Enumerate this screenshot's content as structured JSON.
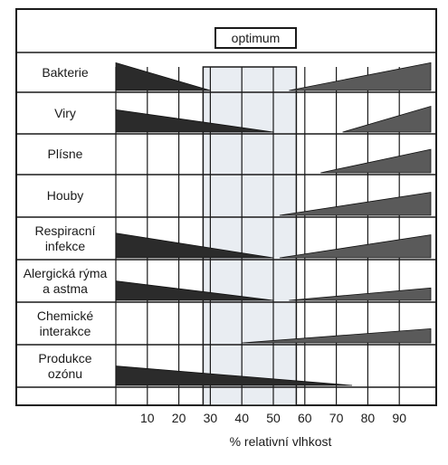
{
  "optimum_label": "optimum",
  "x_axis": {
    "label": "% relativní vlhkost",
    "ticks": [
      10,
      20,
      30,
      40,
      50,
      60,
      70,
      80,
      90
    ],
    "range": [
      0,
      100
    ]
  },
  "optimum_zone": [
    30,
    55
  ],
  "rows": [
    {
      "label_lines": [
        "Bakterie"
      ],
      "left_wedge": {
        "from": 0,
        "to": 30,
        "peak": 0.85,
        "color": "#2b2b2b"
      },
      "right_wedge": {
        "from": 55,
        "to": 100,
        "peak": 0.85,
        "color": "#5a5a5a"
      }
    },
    {
      "label_lines": [
        "Viry"
      ],
      "left_wedge": {
        "from": 0,
        "to": 50,
        "peak": 0.65,
        "color": "#2b2b2b"
      },
      "right_wedge": {
        "from": 72,
        "to": 100,
        "peak": 0.75,
        "color": "#5a5a5a"
      }
    },
    {
      "label_lines": [
        "Plísne"
      ],
      "left_wedge": null,
      "right_wedge": {
        "from": 65,
        "to": 100,
        "peak": 0.7,
        "color": "#5a5a5a"
      }
    },
    {
      "label_lines": [
        "Houby"
      ],
      "left_wedge": null,
      "right_wedge": {
        "from": 52,
        "to": 100,
        "peak": 0.65,
        "color": "#5a5a5a"
      }
    },
    {
      "label_lines": [
        "Respiracní",
        "infekce"
      ],
      "left_wedge": {
        "from": 0,
        "to": 50,
        "peak": 0.7,
        "color": "#2b2b2b"
      },
      "right_wedge": {
        "from": 52,
        "to": 100,
        "peak": 0.65,
        "color": "#5a5a5a"
      }
    },
    {
      "label_lines": [
        "Alergická rýma",
        "a astma"
      ],
      "left_wedge": {
        "from": 0,
        "to": 50,
        "peak": 0.55,
        "color": "#2b2b2b"
      },
      "right_wedge": {
        "from": 55,
        "to": 100,
        "peak": 0.35,
        "color": "#5a5a5a"
      }
    },
    {
      "label_lines": [
        "Chemické",
        "interakce"
      ],
      "left_wedge": null,
      "right_wedge": {
        "from": 40,
        "to": 100,
        "peak": 0.4,
        "color": "#5a5a5a"
      }
    },
    {
      "label_lines": [
        "Produkce",
        "ozónu"
      ],
      "left_wedge": {
        "from": 0,
        "to": 75,
        "peak": 0.55,
        "color": "#2b2b2b"
      },
      "right_wedge": null
    }
  ]
}
